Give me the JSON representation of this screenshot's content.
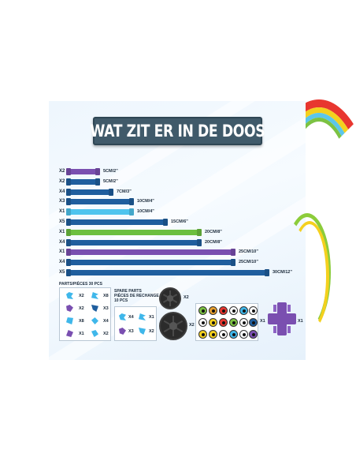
{
  "title": "WAT ZIT ER IN DE DOOS",
  "colors": {
    "title_bg": "#405a6a",
    "purple": "#7a4fb0",
    "dark_blue": "#1f5e9e",
    "light_blue": "#4fc4ee",
    "green": "#6cbf3f"
  },
  "tubes": [
    {
      "qty": "X2",
      "length": "5CM/2\"",
      "color": "purple",
      "value_cm": 5
    },
    {
      "qty": "X2",
      "length": "5CM/2\"",
      "color": "dark_blue",
      "value_cm": 5
    },
    {
      "qty": "X4",
      "length": "7CM/3\"",
      "color": "dark_blue",
      "value_cm": 7
    },
    {
      "qty": "X3",
      "length": "10CM/4\"",
      "color": "dark_blue",
      "value_cm": 10
    },
    {
      "qty": "X1",
      "length": "10CM/4\"",
      "color": "light_blue",
      "value_cm": 10
    },
    {
      "qty": "X5",
      "length": "15CM/6\"",
      "color": "dark_blue",
      "value_cm": 15
    },
    {
      "qty": "X1",
      "length": "20CM/8\"",
      "color": "green",
      "value_cm": 20
    },
    {
      "qty": "X4",
      "length": "20CM/8\"",
      "color": "dark_blue",
      "value_cm": 20
    },
    {
      "qty": "X1",
      "length": "25CM/10\"",
      "color": "purple",
      "value_cm": 25
    },
    {
      "qty": "X4",
      "length": "25CM/10\"",
      "color": "dark_blue",
      "value_cm": 25
    },
    {
      "qty": "X5",
      "length": "30CM/12\"",
      "color": "dark_blue",
      "value_cm": 30
    }
  ],
  "parts": {
    "label": "PARTS/PIÈCES  30 PCS",
    "counts": [
      "X2",
      "X8",
      "X2",
      "X3",
      "X8",
      "X4",
      "X1",
      "X2"
    ]
  },
  "spare": {
    "line1": "SPARE PARTS",
    "line2": "PIÈCES DE RECHANGE",
    "line3": "10 PCS",
    "counts": [
      "X4",
      "X1",
      "X3",
      "X2"
    ]
  },
  "wheels": {
    "small_count": "X2",
    "large_count": "X2"
  },
  "eyes": {
    "count": "X1"
  },
  "connector": {
    "count": "X1"
  }
}
